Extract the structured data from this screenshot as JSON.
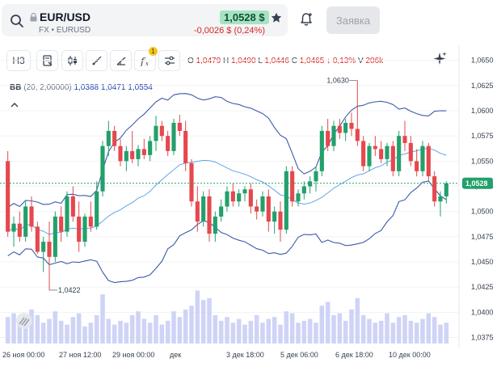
{
  "header": {
    "symbol": "EUR/USD",
    "market": "FX",
    "ticker": "EURUSD",
    "price": "1,0528 $",
    "change": "-0,0026 $ (0,24%)",
    "order_label": "Заявка",
    "colors": {
      "down": "#dc2626",
      "price_bg": "#a7e3c3"
    }
  },
  "toolbar": {
    "interval": "H3",
    "indicator_count": "1",
    "ohlc": {
      "o_key": "O",
      "o": "1,0479",
      "h_key": "H",
      "h": "1,0490",
      "l_key": "L",
      "l": "1,0446",
      "c_key": "C",
      "c": "1,0465",
      "change": "↓ 0,13%",
      "v_key": "V",
      "v": "206k"
    }
  },
  "indicator": {
    "name": "BB",
    "params": "(20, 2,00000)",
    "values": [
      "1,0388",
      "1,0471",
      "1,0554"
    ]
  },
  "chart_data": {
    "type": "candlestick",
    "y_axis": {
      "min": 1.0365,
      "max": 1.0665,
      "ticks": [
        "1,0650",
        "1,0625",
        "1,0600",
        "1,0575",
        "1,0550",
        "1,0525",
        "1,0500",
        "1,0475",
        "1,0450",
        "1,0425",
        "1,0400",
        "1,0375"
      ],
      "position": "right"
    },
    "x_ticks": [
      "26 ноя 00:00",
      "27 ноя 12:00",
      "29 ноя 00:00",
      "дек",
      "3 дек 18:00",
      "5 дек 06:00",
      "6 дек 18:00",
      "10 дек 00:00"
    ],
    "last_price": "1,0528",
    "annotations": {
      "high": "1,0630",
      "low": "1,0422"
    },
    "colors": {
      "up": "#22a06b",
      "down": "#e5484d",
      "band": "#3b5ba9",
      "mid": "#60a5e8",
      "volume": "#c7cdf5"
    },
    "candles": [
      [
        1.055,
        1.056,
        1.0475,
        1.048
      ],
      [
        1.048,
        1.0495,
        1.0465,
        1.0488
      ],
      [
        1.0488,
        1.05,
        1.047,
        1.0475
      ],
      [
        1.0475,
        1.051,
        1.047,
        1.0505
      ],
      [
        1.0505,
        1.0515,
        1.048,
        1.0485
      ],
      [
        1.0485,
        1.049,
        1.0458,
        1.046
      ],
      [
        1.046,
        1.0475,
        1.044,
        1.047
      ],
      [
        1.047,
        1.049,
        1.0422,
        1.0455
      ],
      [
        1.0455,
        1.05,
        1.045,
        1.0495
      ],
      [
        1.0495,
        1.0505,
        1.047,
        1.048
      ],
      [
        1.048,
        1.052,
        1.0475,
        1.0515
      ],
      [
        1.0515,
        1.0525,
        1.049,
        1.0495
      ],
      [
        1.0495,
        1.051,
        1.046,
        1.047
      ],
      [
        1.047,
        1.0498,
        1.0465,
        1.0495
      ],
      [
        1.0495,
        1.051,
        1.048,
        1.0485
      ],
      [
        1.0485,
        1.053,
        1.0482,
        1.052
      ],
      [
        1.052,
        1.057,
        1.0515,
        1.0565
      ],
      [
        1.0565,
        1.059,
        1.0555,
        1.058
      ],
      [
        1.058,
        1.0585,
        1.056,
        1.0565
      ],
      [
        1.0565,
        1.0572,
        1.0545,
        1.055
      ],
      [
        1.055,
        1.0565,
        1.054,
        1.056
      ],
      [
        1.056,
        1.058,
        1.0548,
        1.0552
      ],
      [
        1.0552,
        1.0566,
        1.0545,
        1.0562
      ],
      [
        1.0562,
        1.0572,
        1.0552,
        1.0556
      ],
      [
        1.0556,
        1.0575,
        1.055,
        1.057
      ],
      [
        1.057,
        1.0595,
        1.056,
        1.0585
      ],
      [
        1.0585,
        1.059,
        1.057,
        1.0575
      ],
      [
        1.0575,
        1.058,
        1.0555,
        1.056
      ],
      [
        1.056,
        1.0592,
        1.0556,
        1.0588
      ],
      [
        1.0588,
        1.0596,
        1.0575,
        1.058
      ],
      [
        1.058,
        1.059,
        1.054,
        1.0548
      ],
      [
        1.0548,
        1.0552,
        1.0505,
        1.051
      ],
      [
        1.051,
        1.0525,
        1.048,
        1.049
      ],
      [
        1.049,
        1.052,
        1.0485,
        1.0515
      ],
      [
        1.0515,
        1.0522,
        1.047,
        1.0478
      ],
      [
        1.0478,
        1.05,
        1.047,
        1.0495
      ],
      [
        1.0495,
        1.0512,
        1.049,
        1.0505
      ],
      [
        1.0505,
        1.0525,
        1.05,
        1.052
      ],
      [
        1.052,
        1.0528,
        1.0505,
        1.051
      ],
      [
        1.051,
        1.0522,
        1.0505,
        1.0518
      ],
      [
        1.0518,
        1.0525,
        1.051,
        1.0522
      ],
      [
        1.0522,
        1.0528,
        1.0498,
        1.0505
      ],
      [
        1.0505,
        1.0512,
        1.0492,
        1.05
      ],
      [
        1.05,
        1.052,
        1.0495,
        1.0515
      ],
      [
        1.0515,
        1.0522,
        1.048,
        1.049
      ],
      [
        1.049,
        1.0505,
        1.0478,
        1.05
      ],
      [
        1.05,
        1.051,
        1.047,
        1.0482
      ],
      [
        1.0482,
        1.0545,
        1.0478,
        1.054
      ],
      [
        1.054,
        1.0545,
        1.0505,
        1.051
      ],
      [
        1.051,
        1.0522,
        1.0505,
        1.0518
      ],
      [
        1.0518,
        1.053,
        1.0512,
        1.0525
      ],
      [
        1.0525,
        1.0535,
        1.0518,
        1.053
      ],
      [
        1.053,
        1.0545,
        1.052,
        1.054
      ],
      [
        1.054,
        1.0585,
        1.0535,
        1.058
      ],
      [
        1.058,
        1.0592,
        1.056,
        1.0565
      ],
      [
        1.0565,
        1.059,
        1.056,
        1.0585
      ],
      [
        1.0585,
        1.0592,
        1.0572,
        1.0578
      ],
      [
        1.0578,
        1.0592,
        1.057,
        1.0588
      ],
      [
        1.0588,
        1.0598,
        1.0575,
        1.0582
      ],
      [
        1.0582,
        1.063,
        1.0565,
        1.057
      ],
      [
        1.057,
        1.0575,
        1.054,
        1.0545
      ],
      [
        1.0545,
        1.0568,
        1.054,
        1.0565
      ],
      [
        1.0565,
        1.0575,
        1.0555,
        1.0562
      ],
      [
        1.0562,
        1.057,
        1.0548,
        1.0552
      ],
      [
        1.0552,
        1.0568,
        1.0545,
        1.0565
      ],
      [
        1.0565,
        1.057,
        1.0535,
        1.054
      ],
      [
        1.054,
        1.058,
        1.0535,
        1.0575
      ],
      [
        1.0575,
        1.059,
        1.056,
        1.0568
      ],
      [
        1.0568,
        1.0575,
        1.0545,
        1.055
      ],
      [
        1.055,
        1.0562,
        1.0535,
        1.054
      ],
      [
        1.054,
        1.057,
        1.0535,
        1.0565
      ],
      [
        1.0565,
        1.0568,
        1.053,
        1.0535
      ],
      [
        1.0535,
        1.054,
        1.0505,
        1.051
      ],
      [
        1.051,
        1.052,
        1.0495,
        1.0515
      ],
      [
        1.0515,
        1.053,
        1.0508,
        1.0528
      ]
    ],
    "volumes": [
      0.28,
      0.32,
      0.24,
      0.3,
      0.36,
      0.3,
      0.22,
      0.26,
      0.34,
      0.24,
      0.2,
      0.28,
      0.32,
      0.18,
      0.22,
      0.3,
      0.52,
      0.26,
      0.2,
      0.24,
      0.22,
      0.3,
      0.34,
      0.26,
      0.22,
      0.3,
      0.2,
      0.24,
      0.34,
      0.28,
      0.36,
      0.4,
      0.56,
      0.46,
      0.48,
      0.3,
      0.24,
      0.28,
      0.22,
      0.26,
      0.2,
      0.24,
      0.3,
      0.22,
      0.26,
      0.28,
      0.2,
      0.34,
      0.32,
      0.22,
      0.24,
      0.26,
      0.22,
      0.4,
      0.44,
      0.3,
      0.32,
      0.24,
      0.36,
      0.48,
      0.3,
      0.26,
      0.22,
      0.24,
      0.32,
      0.22,
      0.28,
      0.3,
      0.24,
      0.22,
      0.26,
      0.32,
      0.28,
      0.2,
      0.22
    ]
  }
}
